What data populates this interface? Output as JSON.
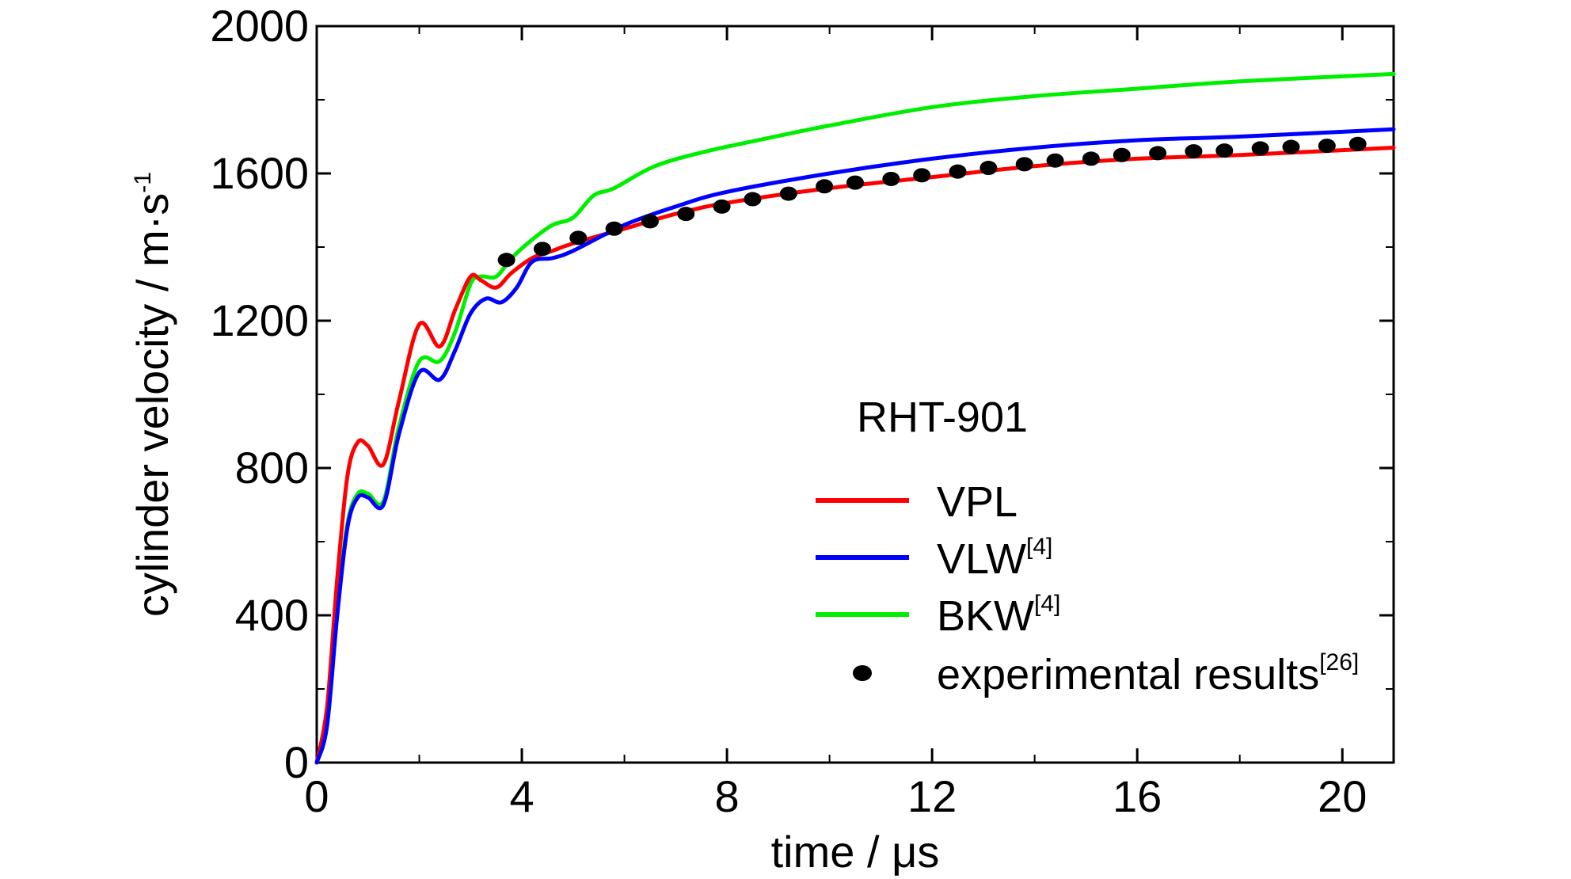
{
  "chart_data": {
    "type": "line",
    "title": "",
    "dataset_label": "RHT-901",
    "xlabel": "time / μs",
    "ylabel_main": "cylinder velocity / m·s",
    "ylabel_sup": "-1",
    "xlim": [
      0,
      21
    ],
    "ylim": [
      0,
      2000
    ],
    "xticks": [
      0,
      4,
      8,
      12,
      16,
      20
    ],
    "yticks": [
      0,
      400,
      800,
      1200,
      1600,
      2000
    ],
    "grid": false,
    "legend_position": "right-center",
    "series": [
      {
        "name": "VPL",
        "ref": "",
        "color": "#ff0000",
        "x": [
          0,
          0.2,
          0.4,
          0.6,
          0.8,
          1.0,
          1.3,
          1.6,
          2.0,
          2.4,
          2.7,
          3.0,
          3.2,
          3.5,
          3.8,
          4.2,
          4.6,
          5.0,
          6.0,
          7.0,
          8.0,
          10.0,
          12.0,
          14.0,
          16.0,
          18.0,
          21.0
        ],
        "y": [
          0,
          150,
          500,
          780,
          870,
          860,
          810,
          980,
          1190,
          1130,
          1230,
          1320,
          1310,
          1290,
          1330,
          1370,
          1390,
          1410,
          1450,
          1490,
          1520,
          1560,
          1590,
          1620,
          1640,
          1650,
          1670
        ]
      },
      {
        "name": "VLW",
        "ref": "[4]",
        "color": "#0000ff",
        "x": [
          0,
          0.2,
          0.4,
          0.6,
          0.8,
          1.0,
          1.3,
          1.6,
          2.0,
          2.4,
          2.7,
          3.0,
          3.3,
          3.6,
          3.9,
          4.2,
          4.6,
          5.0,
          6.0,
          7.0,
          8.0,
          10.0,
          12.0,
          14.0,
          16.0,
          18.0,
          21.0
        ],
        "y": [
          0,
          100,
          400,
          640,
          720,
          720,
          700,
          890,
          1060,
          1040,
          1120,
          1220,
          1260,
          1250,
          1290,
          1360,
          1370,
          1390,
          1460,
          1510,
          1550,
          1600,
          1640,
          1670,
          1690,
          1700,
          1720
        ]
      },
      {
        "name": "BKW",
        "ref": "[4]",
        "color": "#00ee00",
        "x": [
          0,
          0.2,
          0.4,
          0.6,
          0.8,
          1.0,
          1.3,
          1.6,
          2.0,
          2.4,
          2.7,
          3.0,
          3.2,
          3.5,
          3.8,
          4.2,
          4.6,
          5.0,
          5.4,
          5.8,
          6.6,
          7.6,
          8.6,
          10.0,
          12.0,
          14.0,
          16.0,
          18.0,
          21.0
        ],
        "y": [
          0,
          100,
          410,
          650,
          730,
          730,
          710,
          910,
          1090,
          1090,
          1170,
          1300,
          1320,
          1320,
          1370,
          1420,
          1460,
          1480,
          1540,
          1560,
          1620,
          1660,
          1690,
          1730,
          1780,
          1810,
          1830,
          1850,
          1870
        ]
      }
    ],
    "scatter": {
      "name": "experimental results",
      "ref": "[26]",
      "color": "#000000",
      "x": [
        3.7,
        4.4,
        5.1,
        5.8,
        6.5,
        7.2,
        7.9,
        8.5,
        9.2,
        9.9,
        10.5,
        11.2,
        11.8,
        12.5,
        13.1,
        13.8,
        14.4,
        15.1,
        15.7,
        16.4,
        17.1,
        17.7,
        18.4,
        19.0,
        19.7,
        20.3
      ],
      "y": [
        1365,
        1395,
        1425,
        1450,
        1470,
        1490,
        1510,
        1530,
        1545,
        1565,
        1575,
        1585,
        1595,
        1605,
        1615,
        1625,
        1635,
        1640,
        1650,
        1655,
        1660,
        1662,
        1668,
        1672,
        1675,
        1680
      ]
    }
  }
}
